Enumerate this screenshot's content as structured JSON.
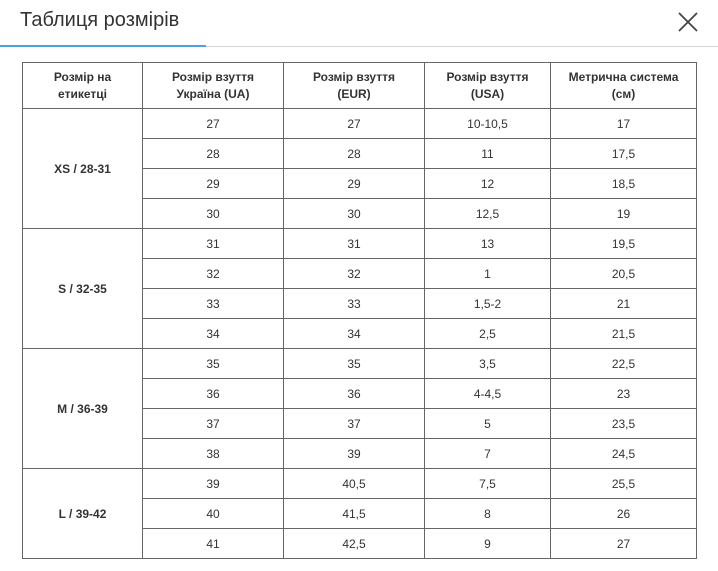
{
  "header": {
    "title": "Таблиця розмірів"
  },
  "table": {
    "headers": [
      "Розмір на\nетикетці",
      "Розмір взуття\nУкраїна (UA)",
      "Розмір взуття\n(EUR)",
      "Розмір взуття\n(USA)",
      "Метрична система\n(см)"
    ],
    "groups": [
      {
        "label": "XS / 28-31",
        "rows": [
          [
            "27",
            "27",
            "10-10,5",
            "17"
          ],
          [
            "28",
            "28",
            "11",
            "17,5"
          ],
          [
            "29",
            "29",
            "12",
            "18,5"
          ],
          [
            "30",
            "30",
            "12,5",
            "19"
          ]
        ]
      },
      {
        "label": "S / 32-35",
        "rows": [
          [
            "31",
            "31",
            "13",
            "19,5"
          ],
          [
            "32",
            "32",
            "1",
            "20,5"
          ],
          [
            "33",
            "33",
            "1,5-2",
            "21"
          ],
          [
            "34",
            "34",
            "2,5",
            "21,5"
          ]
        ]
      },
      {
        "label": "M / 36-39",
        "rows": [
          [
            "35",
            "35",
            "3,5",
            "22,5"
          ],
          [
            "36",
            "36",
            "4-4,5",
            "23"
          ],
          [
            "37",
            "37",
            "5",
            "23,5"
          ],
          [
            "38",
            "39",
            "7",
            "24,5"
          ]
        ]
      },
      {
        "label": "L / 39-42",
        "rows": [
          [
            "39",
            "40,5",
            "7,5",
            "25,5"
          ],
          [
            "40",
            "41,5",
            "8",
            "26"
          ],
          [
            "41",
            "42,5",
            "9",
            "27"
          ]
        ]
      }
    ]
  }
}
